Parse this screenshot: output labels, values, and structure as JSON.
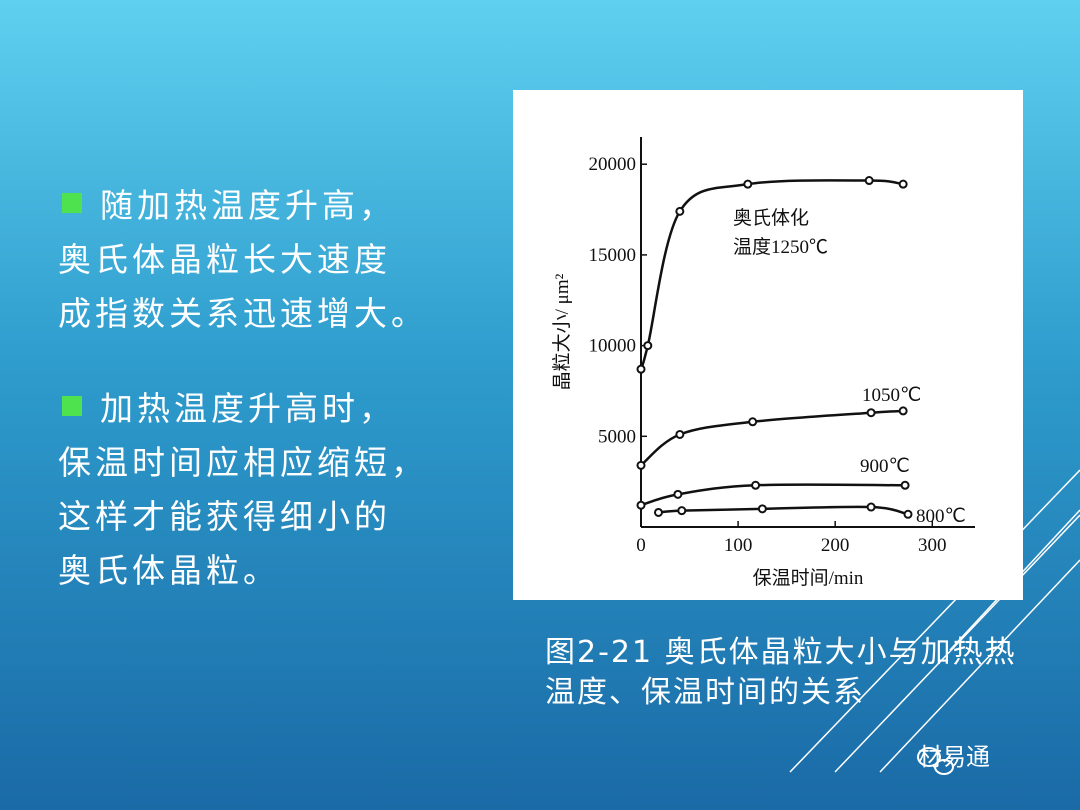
{
  "slide": {
    "paragraphs": [
      {
        "lines": [
          "随加热温度升高，",
          "奥氏体晶粒长大速度",
          "成指数关系迅速增大。"
        ]
      },
      {
        "lines": [
          "加热温度升高时，",
          "保温时间应相应缩短，",
          "这样才能获得细小的",
          "奥氏体晶粒。"
        ]
      }
    ],
    "caption": [
      "图2-21  奥氏体晶粒大小与加热热",
      "温度、保温时间的关系"
    ],
    "watermark": "材易通"
  },
  "chart_data": {
    "type": "line",
    "x_label": "保温时间/min",
    "y_label": "晶粒大小/ μm²",
    "xlim": [
      0,
      344
    ],
    "ylim": [
      0,
      21500
    ],
    "xticks": [
      0,
      100,
      200,
      300
    ],
    "yticks": [
      5000,
      10000,
      15000,
      20000
    ],
    "annotation": "奥氏体化",
    "series": [
      {
        "name": "温度1250℃",
        "color": "#111111",
        "x": [
          0,
          7,
          40,
          110,
          235,
          270
        ],
        "values": [
          8700,
          10000,
          17400,
          18900,
          19100,
          18900
        ]
      },
      {
        "name": "1050℃",
        "color": "#111111",
        "x": [
          0,
          40,
          115,
          237,
          270
        ],
        "values": [
          3400,
          5100,
          5800,
          6300,
          6400
        ]
      },
      {
        "name": "900℃",
        "color": "#111111",
        "x": [
          0,
          38,
          118,
          272
        ],
        "values": [
          1200,
          1800,
          2300,
          2300
        ]
      },
      {
        "name": "800℃",
        "color": "#111111",
        "x": [
          18,
          42,
          125,
          237,
          275
        ],
        "values": [
          800,
          900,
          1000,
          1100,
          700
        ]
      }
    ]
  }
}
